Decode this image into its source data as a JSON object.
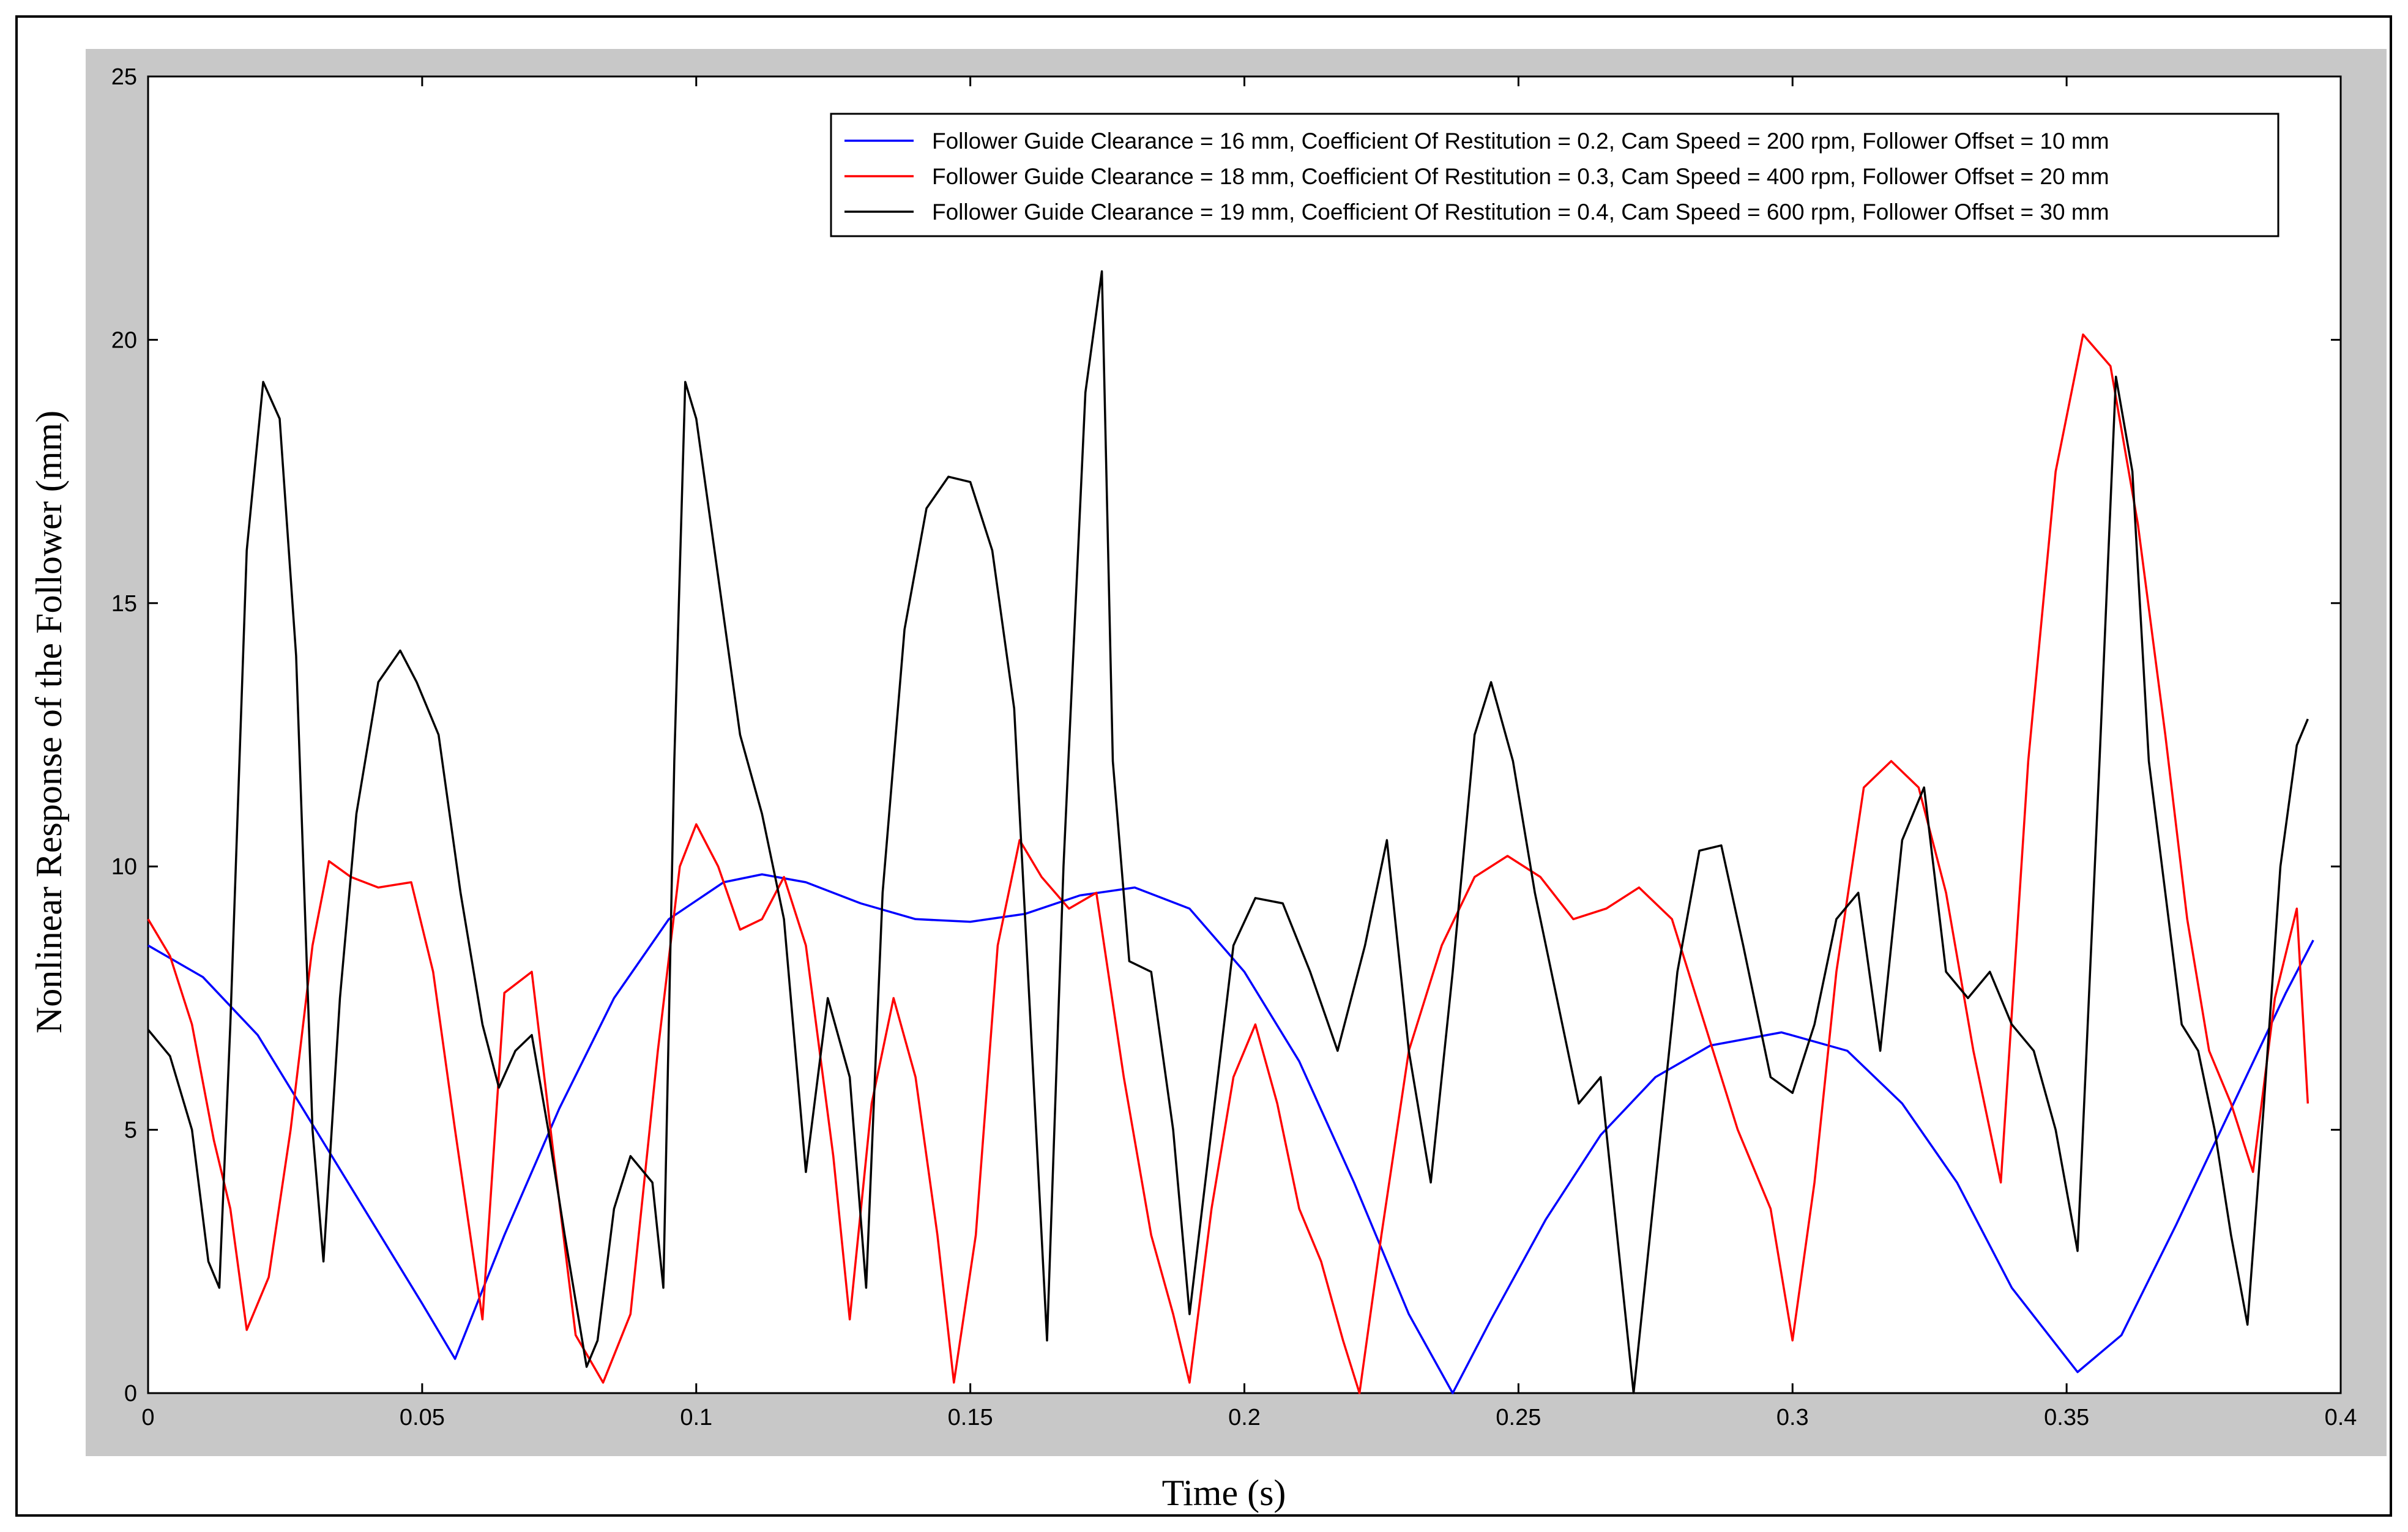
{
  "colors": {
    "background": "#ffffff",
    "panel": "#c8c8c8",
    "axes": "#ffffff",
    "blue": "#0000ff",
    "red": "#ff0000",
    "black": "#000000"
  },
  "chart_data": {
    "type": "line",
    "title": "",
    "xlabel": "Time (s)",
    "ylabel": "Nonlinear Response of the Follower (mm)",
    "xlim": [
      0,
      0.4
    ],
    "ylim": [
      0,
      25
    ],
    "grid": false,
    "legend_position": "top-right",
    "xticks": [
      "0",
      "0.05",
      "0.1",
      "0.15",
      "0.2",
      "0.25",
      "0.3",
      "0.35",
      "0.4"
    ],
    "yticks": [
      "0",
      "5",
      "10",
      "15",
      "20",
      "25"
    ],
    "series": [
      {
        "name": "Follower Guide Clearance = 16 mm, Coefficient Of Restitution = 0.2, Cam Speed = 200 rpm, Follower Offset = 10 mm",
        "color": "#0000ff",
        "x": [
          0,
          0.01,
          0.02,
          0.03,
          0.04,
          0.05,
          0.056,
          0.065,
          0.075,
          0.085,
          0.095,
          0.105,
          0.112,
          0.12,
          0.13,
          0.14,
          0.15,
          0.16,
          0.17,
          0.18,
          0.19,
          0.2,
          0.21,
          0.22,
          0.23,
          0.238,
          0.245,
          0.255,
          0.265,
          0.275,
          0.285,
          0.298,
          0.31,
          0.32,
          0.33,
          0.34,
          0.352,
          0.36,
          0.37,
          0.38,
          0.39,
          0.395
        ],
        "y": [
          8.5,
          7.9,
          6.8,
          5.1,
          3.4,
          1.7,
          0.65,
          3.0,
          5.4,
          7.5,
          9.0,
          9.7,
          9.85,
          9.7,
          9.3,
          9.0,
          8.95,
          9.1,
          9.45,
          9.6,
          9.2,
          8.0,
          6.3,
          4.0,
          1.5,
          0.0,
          1.4,
          3.3,
          4.9,
          6.0,
          6.6,
          6.85,
          6.5,
          5.5,
          4.0,
          2.0,
          0.4,
          1.1,
          3.2,
          5.4,
          7.6,
          8.6
        ]
      },
      {
        "name": "Follower Guide Clearance = 18 mm, Coefficient Of Restitution = 0.3, Cam Speed = 400 rpm, Follower Offset = 20 mm",
        "color": "#ff0000",
        "x": [
          0,
          0.004,
          0.008,
          0.012,
          0.015,
          0.018,
          0.022,
          0.026,
          0.03,
          0.033,
          0.037,
          0.042,
          0.048,
          0.052,
          0.056,
          0.061,
          0.065,
          0.07,
          0.074,
          0.078,
          0.083,
          0.088,
          0.093,
          0.097,
          0.1,
          0.104,
          0.108,
          0.112,
          0.116,
          0.12,
          0.125,
          0.128,
          0.132,
          0.136,
          0.14,
          0.144,
          0.147,
          0.151,
          0.155,
          0.159,
          0.163,
          0.168,
          0.173,
          0.178,
          0.183,
          0.187,
          0.19,
          0.194,
          0.198,
          0.202,
          0.206,
          0.21,
          0.214,
          0.218,
          0.221,
          0.225,
          0.23,
          0.236,
          0.242,
          0.248,
          0.254,
          0.26,
          0.266,
          0.272,
          0.278,
          0.284,
          0.29,
          0.296,
          0.3,
          0.304,
          0.308,
          0.313,
          0.318,
          0.323,
          0.328,
          0.333,
          0.338,
          0.343,
          0.348,
          0.353,
          0.358,
          0.363,
          0.368,
          0.372,
          0.376,
          0.38,
          0.384,
          0.388,
          0.392,
          0.394
        ],
        "y": [
          9.0,
          8.3,
          7.0,
          4.8,
          3.5,
          1.2,
          2.2,
          5.0,
          8.5,
          10.1,
          9.8,
          9.6,
          9.7,
          8.0,
          5.0,
          1.4,
          7.6,
          8.0,
          4.5,
          1.1,
          0.2,
          1.5,
          6.5,
          10.0,
          10.8,
          10.0,
          8.8,
          9.0,
          9.8,
          8.5,
          4.5,
          1.4,
          5.5,
          7.5,
          6.0,
          3.0,
          0.2,
          3.0,
          8.5,
          10.5,
          9.8,
          9.2,
          9.5,
          6.0,
          3.0,
          1.5,
          0.2,
          3.5,
          6.0,
          7.0,
          5.5,
          3.5,
          2.5,
          1.0,
          0.0,
          3.0,
          6.5,
          8.5,
          9.8,
          10.2,
          9.8,
          9.0,
          9.2,
          9.6,
          9.0,
          7.0,
          5.0,
          3.5,
          1.0,
          4.0,
          8.0,
          11.5,
          12.0,
          11.5,
          9.5,
          6.5,
          4.0,
          12.0,
          17.5,
          20.1,
          19.5,
          16.5,
          12.5,
          9.0,
          6.5,
          5.5,
          4.2,
          7.5,
          9.2,
          5.5
        ]
      },
      {
        "name": "Follower Guide Clearance = 19 mm, Coefficient Of Restitution = 0.4, Cam Speed = 600 rpm, Follower Offset = 30 mm",
        "color": "#000000",
        "x": [
          0,
          0.004,
          0.008,
          0.011,
          0.013,
          0.015,
          0.018,
          0.021,
          0.024,
          0.027,
          0.03,
          0.032,
          0.035,
          0.038,
          0.042,
          0.046,
          0.049,
          0.053,
          0.057,
          0.061,
          0.064,
          0.067,
          0.07,
          0.073,
          0.076,
          0.08,
          0.082,
          0.085,
          0.088,
          0.092,
          0.094,
          0.096,
          0.098,
          0.1,
          0.104,
          0.108,
          0.112,
          0.116,
          0.12,
          0.124,
          0.128,
          0.131,
          0.134,
          0.138,
          0.142,
          0.146,
          0.15,
          0.154,
          0.158,
          0.161,
          0.164,
          0.167,
          0.171,
          0.174,
          0.176,
          0.179,
          0.183,
          0.187,
          0.19,
          0.194,
          0.198,
          0.202,
          0.207,
          0.212,
          0.217,
          0.222,
          0.226,
          0.23,
          0.234,
          0.238,
          0.242,
          0.245,
          0.249,
          0.253,
          0.257,
          0.261,
          0.265,
          0.268,
          0.271,
          0.275,
          0.279,
          0.283,
          0.287,
          0.291,
          0.296,
          0.3,
          0.304,
          0.308,
          0.312,
          0.316,
          0.32,
          0.324,
          0.328,
          0.332,
          0.336,
          0.34,
          0.344,
          0.348,
          0.352,
          0.356,
          0.359,
          0.362,
          0.365,
          0.368,
          0.371,
          0.374,
          0.377,
          0.38,
          0.383,
          0.386,
          0.389,
          0.392,
          0.394
        ],
        "y": [
          6.9,
          6.4,
          5.0,
          2.5,
          2.0,
          7.0,
          16.0,
          19.2,
          18.5,
          14.0,
          5.0,
          2.5,
          7.5,
          11.0,
          13.5,
          14.1,
          13.5,
          12.5,
          9.5,
          7.0,
          5.8,
          6.5,
          6.8,
          5.0,
          3.0,
          0.5,
          1.0,
          3.5,
          4.5,
          4.0,
          2.0,
          12.0,
          19.2,
          18.5,
          15.5,
          12.5,
          11.0,
          9.0,
          4.2,
          7.5,
          6.0,
          2.0,
          9.5,
          14.5,
          16.8,
          17.4,
          17.3,
          16.0,
          13.0,
          7.0,
          1.0,
          10.0,
          19.0,
          21.3,
          12.0,
          8.2,
          8.0,
          5.0,
          1.5,
          5.0,
          8.5,
          9.4,
          9.3,
          8.0,
          6.5,
          8.5,
          10.5,
          6.5,
          4.0,
          8.0,
          12.5,
          13.5,
          12.0,
          9.5,
          7.5,
          5.5,
          6.0,
          3.0,
          0.0,
          4.0,
          8.0,
          10.3,
          10.4,
          8.5,
          6.0,
          5.7,
          7.0,
          9.0,
          9.5,
          6.5,
          10.5,
          11.5,
          8.0,
          7.5,
          8.0,
          7.0,
          6.5,
          5.0,
          2.7,
          12.0,
          19.3,
          17.5,
          12.0,
          9.5,
          7.0,
          6.5,
          5.0,
          3.0,
          1.3,
          5.5,
          10.0,
          12.3,
          12.8
        ]
      }
    ]
  }
}
